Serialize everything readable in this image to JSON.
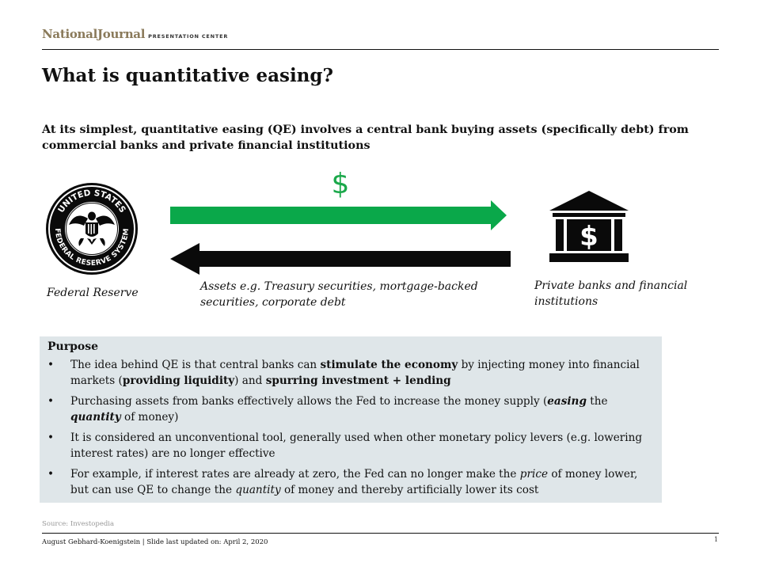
{
  "header": {
    "brand_name": "NationalJournal",
    "brand_sub": "PRESENTATION CENTER"
  },
  "title": "What is quantitative easing?",
  "subtitle": "At its simplest, quantitative easing (QE) involves a central bank buying assets (specifically debt) from commercial banks and private financial institutions",
  "diagram": {
    "seal_top_text": "UNITED STATES",
    "seal_bottom_text": "FEDERAL RESERVE SYSTEM",
    "money_symbol": "$",
    "bank_symbol": "$",
    "fed_label": "Federal Reserve",
    "assets_label": "Assets e.g. Treasury securities, mortgage-backed securities, corporate debt",
    "banks_label": "Private banks and financial institutions",
    "colors": {
      "money_arrow": "#0aa84a",
      "assets_arrow": "#0a0a0a",
      "dollar_sign": "#1aa84a"
    }
  },
  "purpose": {
    "heading": "Purpose",
    "bullet_char": "•",
    "bullets": [
      [
        {
          "t": "The idea behind QE is that central banks can "
        },
        {
          "t": "stimulate the economy",
          "b": true
        },
        {
          "t": " by injecting  money into financial  markets ("
        },
        {
          "t": "providing liquidity",
          "b": true
        },
        {
          "t": ") and "
        },
        {
          "t": "spurring investment + lending",
          "b": true
        }
      ],
      [
        {
          "t": "Purchasing assets from banks effectively allows the Fed to increase the money supply ("
        },
        {
          "t": "easing",
          "b": true,
          "i": true
        },
        {
          "t": " the "
        },
        {
          "t": "quantity",
          "b": true,
          "i": true
        },
        {
          "t": " of money)"
        }
      ],
      [
        {
          "t": "It is considered an unconventional  tool,  generally used when other monetary policy levers (e.g. lowering interest rates) are no longer effective"
        }
      ],
      [
        {
          "t": "For example, if interest rates are already at zero, the Fed can no longer make the "
        },
        {
          "t": "price",
          "i": true
        },
        {
          "t": " of money lower, but can use QE to change the "
        },
        {
          "t": "quantity",
          "i": true
        },
        {
          "t": " of money and thereby artificially lower its cost"
        }
      ]
    ]
  },
  "source": "Source: Investopedia",
  "footer": "August Gebhard-Koenigstein | Slide last updated on: April 2, 2020",
  "page_number": "1"
}
